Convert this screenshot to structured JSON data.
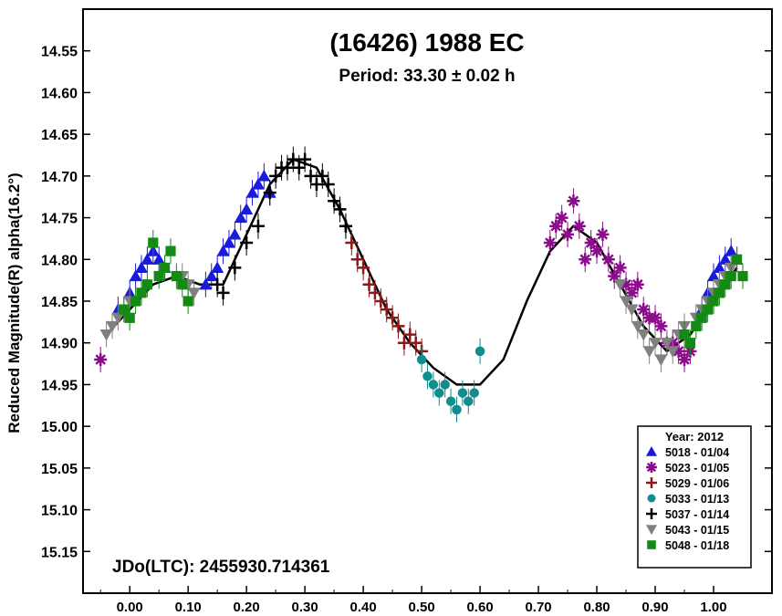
{
  "chart_data": {
    "type": "scatter",
    "title": "(16426) 1988 EC",
    "subtitle": "Period: 33.30 ± 0.02 h",
    "ylabel": "Reduced Magnitude(R) alpha(16.2°)",
    "xlabel": "",
    "annotation": "JDo(LTC): 2455930.714361",
    "xlim": [
      -0.08,
      1.1
    ],
    "ylim": [
      15.2,
      14.5
    ],
    "y_inverted": true,
    "xticks": [
      "0.00",
      "0.10",
      "0.20",
      "0.30",
      "0.40",
      "0.50",
      "0.60",
      "0.70",
      "0.80",
      "0.90",
      "1.00"
    ],
    "yticks": [
      "14.55",
      "14.60",
      "14.65",
      "14.70",
      "14.75",
      "14.80",
      "14.85",
      "14.90",
      "14.95",
      "15.00",
      "15.05",
      "15.10",
      "15.15"
    ],
    "legend": {
      "title": "Year: 2012",
      "placement": "bottom-right",
      "entries": [
        "5018 - 01/04",
        "5023 - 01/05",
        "5029 - 01/06",
        "5033 - 01/13",
        "5037 - 01/14",
        "5043 - 01/15",
        "5048 - 01/18"
      ]
    },
    "series": [
      {
        "name": "5018 - 01/04",
        "marker": "triangle",
        "color": "#1a1adc",
        "x": [
          -0.02,
          0.0,
          0.01,
          0.02,
          0.03,
          0.04,
          0.05,
          0.06,
          0.13,
          0.14,
          0.15,
          0.16,
          0.17,
          0.18,
          0.19,
          0.2,
          0.21,
          0.22,
          0.23,
          0.24,
          0.98,
          0.99,
          1.0,
          1.01,
          1.02,
          1.03,
          1.04
        ],
        "y": [
          14.86,
          14.84,
          14.82,
          14.81,
          14.8,
          14.79,
          14.8,
          14.81,
          14.83,
          14.82,
          14.81,
          14.79,
          14.78,
          14.77,
          14.75,
          14.74,
          14.72,
          14.71,
          14.7,
          14.72,
          14.86,
          14.84,
          14.82,
          14.81,
          14.8,
          14.79,
          14.8
        ]
      },
      {
        "name": "5023 - 01/05",
        "marker": "asterisk",
        "color": "#8b0d8b",
        "x": [
          -0.05,
          0.72,
          0.73,
          0.74,
          0.75,
          0.76,
          0.77,
          0.78,
          0.79,
          0.8,
          0.81,
          0.82,
          0.83,
          0.84,
          0.85,
          0.86,
          0.87,
          0.88,
          0.89,
          0.9,
          0.91,
          0.92,
          0.93,
          0.94,
          0.95,
          0.96
        ],
        "y": [
          14.92,
          14.78,
          14.76,
          14.75,
          14.77,
          14.73,
          14.76,
          14.8,
          14.78,
          14.79,
          14.77,
          14.8,
          14.82,
          14.81,
          14.83,
          14.84,
          14.83,
          14.86,
          14.87,
          14.87,
          14.88,
          14.9,
          14.9,
          14.91,
          14.92,
          14.91
        ]
      },
      {
        "name": "5029 - 01/06",
        "marker": "plus",
        "color": "#8b1a1a",
        "x": [
          0.37,
          0.38,
          0.39,
          0.4,
          0.41,
          0.42,
          0.43,
          0.44,
          0.45,
          0.46,
          0.47,
          0.48,
          0.49,
          0.5
        ],
        "y": [
          14.76,
          14.78,
          14.8,
          14.81,
          14.83,
          14.84,
          14.85,
          14.86,
          14.87,
          14.88,
          14.9,
          14.89,
          14.9,
          14.91
        ]
      },
      {
        "name": "5033 - 01/13",
        "marker": "circle",
        "color": "#128c8c",
        "x": [
          0.5,
          0.51,
          0.52,
          0.53,
          0.54,
          0.55,
          0.56,
          0.57,
          0.58,
          0.59,
          0.6
        ],
        "y": [
          14.92,
          14.94,
          14.95,
          14.96,
          14.95,
          14.97,
          14.98,
          14.96,
          14.97,
          14.96,
          14.91
        ]
      },
      {
        "name": "5037 - 01/14",
        "marker": "plus",
        "color": "#000000",
        "x": [
          0.15,
          0.16,
          0.18,
          0.2,
          0.22,
          0.24,
          0.25,
          0.26,
          0.27,
          0.28,
          0.29,
          0.3,
          0.31,
          0.32,
          0.33,
          0.34,
          0.35,
          0.36,
          0.37
        ],
        "y": [
          14.83,
          14.84,
          14.81,
          14.78,
          14.76,
          14.72,
          14.7,
          14.69,
          14.69,
          14.68,
          14.69,
          14.68,
          14.7,
          14.71,
          14.7,
          14.71,
          14.73,
          14.74,
          14.76
        ]
      },
      {
        "name": "5043 - 01/15",
        "marker": "triangle-down",
        "color": "#808080",
        "x": [
          -0.04,
          -0.03,
          -0.02,
          -0.01,
          0.0,
          0.09,
          0.1,
          0.11,
          0.84,
          0.85,
          0.86,
          0.87,
          0.88,
          0.89,
          0.9,
          0.91,
          0.92,
          0.93,
          0.94,
          0.95,
          0.97,
          0.98,
          0.99,
          1.0,
          1.01,
          1.02,
          1.03
        ],
        "y": [
          14.89,
          14.88,
          14.87,
          14.86,
          14.85,
          14.82,
          14.83,
          14.84,
          14.83,
          14.85,
          14.86,
          14.88,
          14.89,
          14.91,
          14.9,
          14.92,
          14.9,
          14.91,
          14.89,
          14.88,
          14.87,
          14.86,
          14.85,
          14.84,
          14.83,
          14.82,
          14.81
        ]
      },
      {
        "name": "5048 - 01/18",
        "marker": "square",
        "color": "#138a13",
        "x": [
          -0.01,
          0.0,
          0.01,
          0.02,
          0.03,
          0.04,
          0.05,
          0.06,
          0.07,
          0.08,
          0.09,
          0.1,
          0.95,
          0.96,
          0.97,
          0.98,
          0.99,
          1.0,
          1.01,
          1.02,
          1.03,
          1.04,
          1.05
        ],
        "y": [
          14.86,
          14.87,
          14.85,
          14.84,
          14.83,
          14.78,
          14.82,
          14.81,
          14.79,
          14.82,
          14.83,
          14.85,
          14.89,
          14.9,
          14.88,
          14.87,
          14.86,
          14.85,
          14.84,
          14.83,
          14.82,
          14.8,
          14.82
        ]
      }
    ],
    "fit_curve": {
      "x": [
        -0.04,
        0.0,
        0.04,
        0.08,
        0.12,
        0.16,
        0.2,
        0.24,
        0.28,
        0.32,
        0.36,
        0.4,
        0.44,
        0.48,
        0.52,
        0.56,
        0.6,
        0.64,
        0.68,
        0.72,
        0.76,
        0.8,
        0.84,
        0.88,
        0.92,
        0.96,
        1.0,
        1.04
      ],
      "y": [
        14.89,
        14.86,
        14.83,
        14.82,
        14.83,
        14.83,
        14.77,
        14.71,
        14.68,
        14.69,
        14.74,
        14.8,
        14.86,
        14.9,
        14.93,
        14.95,
        14.95,
        14.92,
        14.85,
        14.79,
        14.76,
        14.78,
        14.83,
        14.88,
        14.91,
        14.89,
        14.85,
        14.81
      ]
    }
  }
}
